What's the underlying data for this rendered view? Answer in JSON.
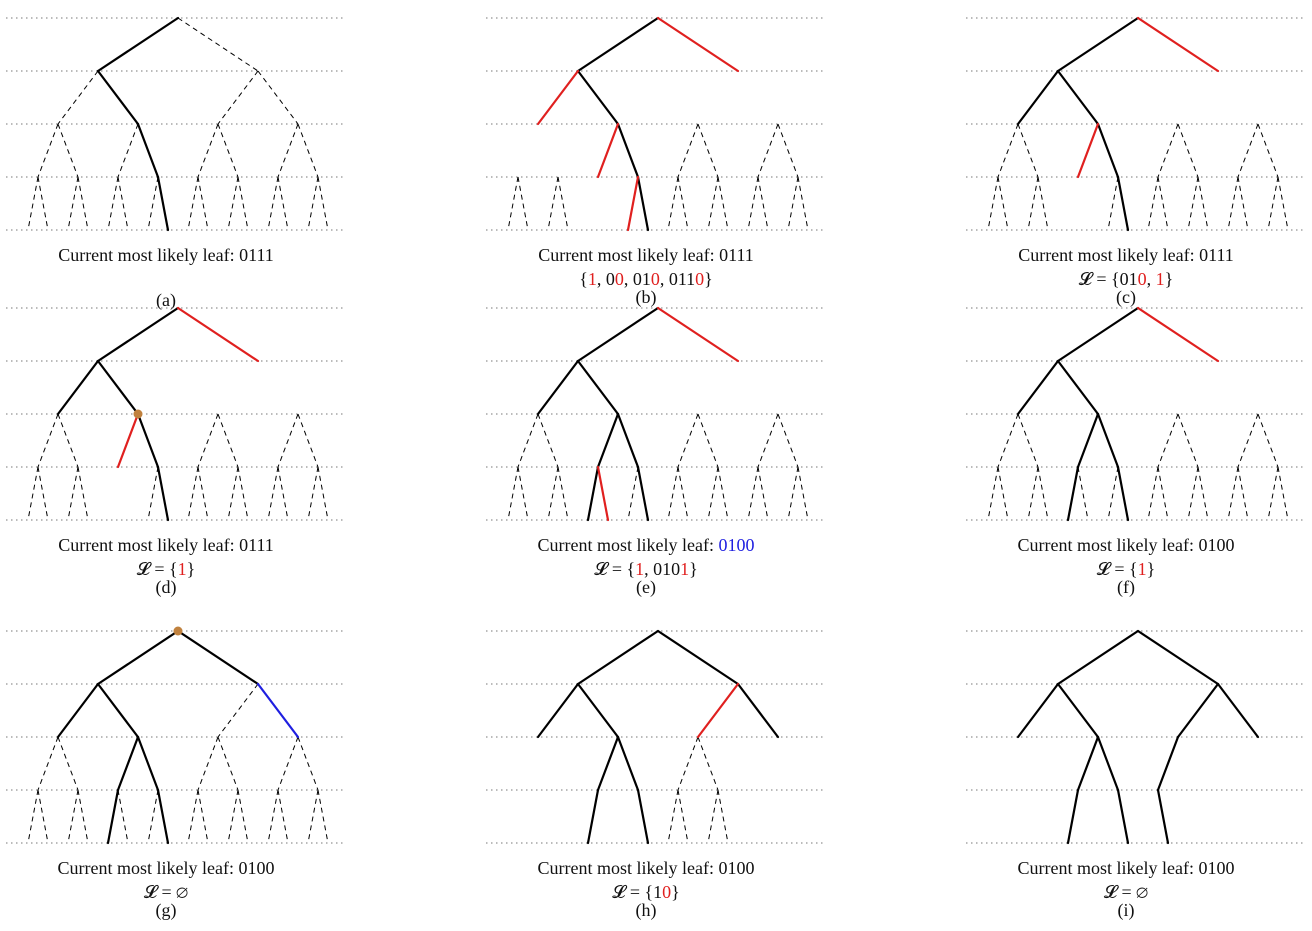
{
  "colors": {
    "red": "#e0201f",
    "blue": "#1f1fe0",
    "black": "#000000",
    "marker": "#c0813e"
  },
  "panels": [
    {
      "id": "a",
      "label": "(a)",
      "caption": [
        {
          "t": "Current most likely leaf: 0111"
        }
      ],
      "set": [],
      "solid": [
        "0",
        "01",
        "011",
        "0111"
      ],
      "red": [],
      "blue": [],
      "dashedDepth": 4,
      "marker": null
    },
    {
      "id": "b",
      "label": "(b)",
      "caption": [
        {
          "t": "Current most likely leaf: 0111"
        }
      ],
      "set": [
        {
          "t": "{"
        },
        {
          "t": "1",
          "c": "red"
        },
        {
          "t": ", 0"
        },
        {
          "t": "0",
          "c": "red"
        },
        {
          "t": ", 01"
        },
        {
          "t": "0",
          "c": "red"
        },
        {
          "t": ", 011"
        },
        {
          "t": "0",
          "c": "red"
        },
        {
          "t": "}"
        }
      ],
      "solid": [
        "0",
        "01",
        "011",
        "0111"
      ],
      "red": [
        "1",
        "00",
        "010",
        "0110"
      ],
      "blue": [],
      "dashedDepth": 4,
      "marker": null
    },
    {
      "id": "c",
      "label": "(c)",
      "caption": [
        {
          "t": "Current most likely leaf: 0111"
        }
      ],
      "set": [
        {
          "t": "𝓛 = {01"
        },
        {
          "t": "0",
          "c": "red"
        },
        {
          "t": ", "
        },
        {
          "t": "1",
          "c": "red"
        },
        {
          "t": "}"
        }
      ],
      "solid": [
        "0",
        "00",
        "01",
        "011",
        "0111"
      ],
      "red": [
        "1",
        "010"
      ],
      "blue": [],
      "dashedDepth": 4,
      "marker": null
    },
    {
      "id": "d",
      "label": "(d)",
      "caption": [
        {
          "t": "Current most likely leaf: 0111"
        }
      ],
      "set": [
        {
          "t": "𝓛 = {"
        },
        {
          "t": "1",
          "c": "red"
        },
        {
          "t": "}"
        }
      ],
      "solid": [
        "0",
        "00",
        "01",
        "011",
        "0111"
      ],
      "red": [
        "1",
        "010"
      ],
      "blue": [],
      "dashedDepth": 4,
      "marker": "01"
    },
    {
      "id": "e",
      "label": "(e)",
      "caption": [
        {
          "t": "Current most likely leaf: "
        },
        {
          "t": "0100",
          "c": "blue"
        }
      ],
      "set": [
        {
          "t": "𝓛 = {"
        },
        {
          "t": "1",
          "c": "red"
        },
        {
          "t": ", 010"
        },
        {
          "t": "1",
          "c": "red"
        },
        {
          "t": "}"
        }
      ],
      "solid": [
        "0",
        "00",
        "01",
        "010",
        "011",
        "0100",
        "0111"
      ],
      "red": [
        "1",
        "0101"
      ],
      "blue": [],
      "dashedDepth": 4,
      "marker": null
    },
    {
      "id": "f",
      "label": "(f)",
      "caption": [
        {
          "t": "Current most likely leaf: 0100"
        }
      ],
      "set": [
        {
          "t": "𝓛 = {"
        },
        {
          "t": "1",
          "c": "red"
        },
        {
          "t": "}"
        }
      ],
      "solid": [
        "0",
        "00",
        "01",
        "010",
        "011",
        "0100",
        "0111"
      ],
      "red": [
        "1"
      ],
      "blue": [],
      "dashedDepth": 4,
      "marker": null
    },
    {
      "id": "g",
      "label": "(g)",
      "caption": [
        {
          "t": "Current most likely leaf: 0100"
        }
      ],
      "set": [
        {
          "t": "𝓛 = ∅"
        }
      ],
      "solid": [
        "0",
        "1",
        "00",
        "01",
        "010",
        "011",
        "0100",
        "0111"
      ],
      "red": [],
      "blue": [
        "11"
      ],
      "dashedDepth": 4,
      "marker": ""
    },
    {
      "id": "h",
      "label": "(h)",
      "caption": [
        {
          "t": "Current most likely leaf: 0100"
        }
      ],
      "set": [
        {
          "t": "𝓛 = {1"
        },
        {
          "t": "0",
          "c": "red"
        },
        {
          "t": "}"
        }
      ],
      "solid": [
        "0",
        "1",
        "00",
        "01",
        "11",
        "010",
        "011",
        "0100",
        "0111"
      ],
      "red": [
        "10"
      ],
      "blue": [],
      "dashedDepth": 4,
      "dashedRoots": [
        "10"
      ],
      "marker": null
    },
    {
      "id": "i",
      "label": "(i)",
      "caption": [
        {
          "t": "Current most likely leaf: 0100"
        }
      ],
      "set": [
        {
          "t": "𝓛 = ∅"
        }
      ],
      "solid": [
        "0",
        "1",
        "00",
        "01",
        "10",
        "11",
        "010",
        "011",
        "100",
        "0100",
        "0111",
        "1001"
      ],
      "red": [],
      "blue": [],
      "dashedDepth": 0,
      "marker": null
    }
  ]
}
